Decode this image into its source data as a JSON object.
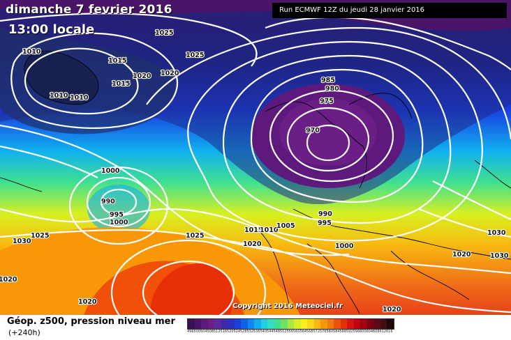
{
  "header": {
    "date": "dimanche 7 fevrier 2016",
    "time": "13:00 locale",
    "run": "Run ECMWF 12Z du jeudi 28 janvier 2016"
  },
  "copyright": "Copyright 2016 Meteociel.fr",
  "footer": {
    "title": "Géop. z500, pression niveau mer",
    "subtitle": "(+240h)"
  },
  "isobar_labels": [
    "1025",
    "1025",
    "1010",
    "1015",
    "1015",
    "1020",
    "1020",
    "1010",
    "1010",
    "985",
    "980",
    "975",
    "970",
    "1000",
    "990",
    "995",
    "1000",
    "1025",
    "1030",
    "1015",
    "1010",
    "1005",
    "1020",
    "990",
    "995",
    "1000",
    "1025",
    "1020",
    "1020",
    "1030",
    "1030",
    "1020",
    "1020"
  ],
  "color_scale": {
    "labels": [
      "496",
      "500",
      "504",
      "508",
      "512",
      "516",
      "520",
      "524",
      "528",
      "532",
      "536",
      "540",
      "544",
      "548",
      "552",
      "556",
      "560",
      "564",
      "568",
      "572",
      "576",
      "580",
      "584",
      "588",
      "592",
      "596",
      "600",
      "604",
      "608",
      "612",
      "616"
    ],
    "colors": [
      "#3a0f55",
      "#4a1468",
      "#5d1a7c",
      "#6a1e86",
      "#5a2aa0",
      "#3e2aa8",
      "#2a30c0",
      "#1a3fe0",
      "#1060f0",
      "#0a88f5",
      "#10b0f0",
      "#20d0e0",
      "#30e0c0",
      "#40e090",
      "#70e060",
      "#a8e840",
      "#d8f020",
      "#f8f020",
      "#f8d818",
      "#f8b810",
      "#f89808",
      "#f87808",
      "#f05008",
      "#e83008",
      "#d81010",
      "#c00010",
      "#a00010",
      "#800010",
      "#600818",
      "#401010",
      "#200808"
    ]
  }
}
